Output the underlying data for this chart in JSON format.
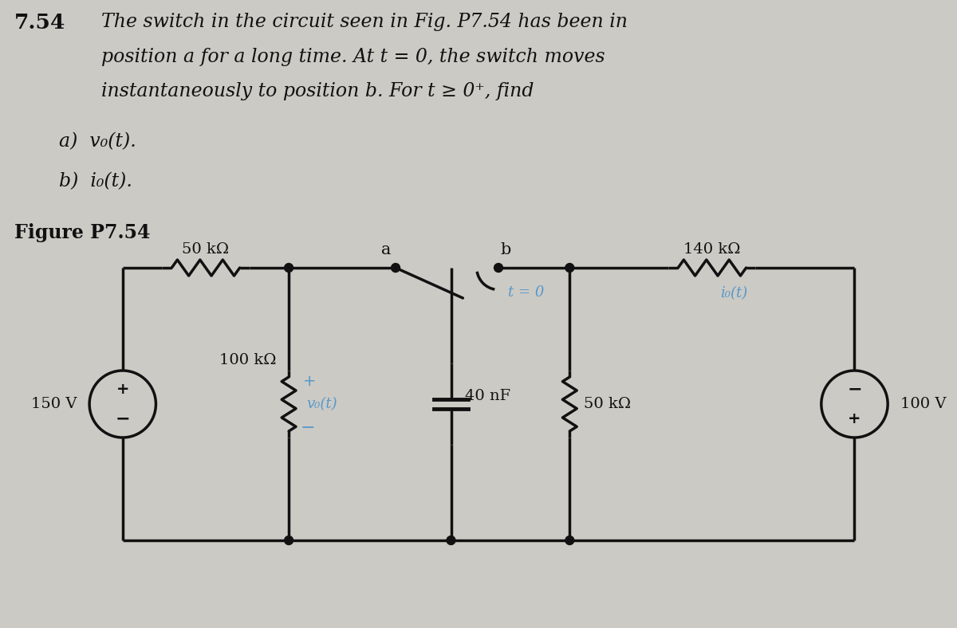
{
  "bg_color": "#cccac4",
  "title_number": "7.54",
  "title_text_line1": "The switch in the circuit seen in Fig. P7.54 has been in",
  "title_text_line2": "position a for a long time. At t = 0, the switch moves",
  "title_text_line3": "instantaneously to position b. For t ≥ 0⁺, find",
  "part_a": "a)  v₀(t).",
  "part_b": "b)  i₀(t).",
  "fig_label": "Figure P7.54",
  "r1_label": "50 kΩ",
  "r2_label": "100 kΩ",
  "vo_label": "v₀(t)",
  "cap_label": "40 nF",
  "r3_label": "50 kΩ",
  "r4_label": "140 kΩ",
  "io_label": "i₀(t)",
  "left_src_label": "150 V",
  "right_src_label": "100 V",
  "switch_a": "a",
  "switch_b": "b",
  "switch_t": "t = 0",
  "text_color": "#111111",
  "blue_color": "#5599cc",
  "line_color": "#111111",
  "line_lw": 2.5
}
